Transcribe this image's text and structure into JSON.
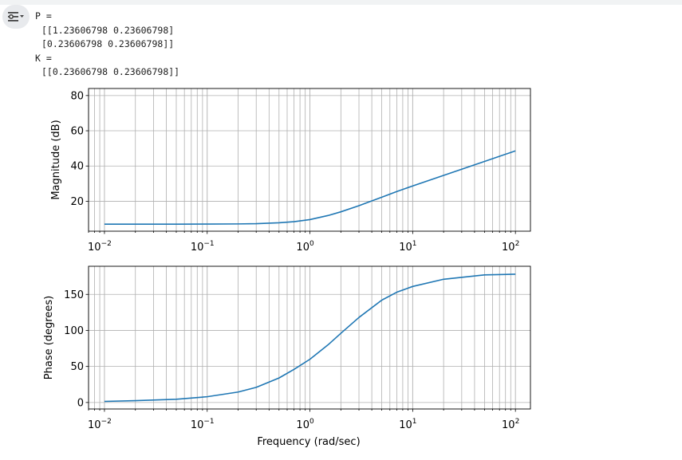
{
  "output": {
    "lines": [
      "P =",
      "[[1.23606798 0.23606798]",
      "[0.23606798 0.23606798]]",
      "K =",
      "[[0.23606798 0.23606798]]"
    ]
  },
  "colors": {
    "line": "#1f77b4",
    "grid": "#b0b0b0",
    "button_bg": "#e8eaed"
  },
  "icons": {
    "output_button": "output-settings-icon"
  },
  "chart_data": [
    {
      "type": "line",
      "title": "",
      "xlabel": "",
      "ylabel": "Magnitude (dB)",
      "xscale": "log",
      "xlim": [
        0.007,
        140
      ],
      "ylim": [
        3,
        84
      ],
      "grid": true,
      "xticks": [
        0.01,
        0.1,
        1,
        10,
        100
      ],
      "xtick_labels": [
        {
          "base": "10",
          "exp": "−2"
        },
        {
          "base": "10",
          "exp": "−1"
        },
        {
          "base": "10",
          "exp": "0"
        },
        {
          "base": "10",
          "exp": "1"
        },
        {
          "base": "10",
          "exp": "2"
        }
      ],
      "yticks": [
        20,
        40,
        60,
        80
      ],
      "ytick_labels": [
        "20",
        "40",
        "60",
        "80"
      ],
      "series": [
        {
          "x": [
            0.01,
            0.02,
            0.05,
            0.1,
            0.2,
            0.3,
            0.5,
            0.7,
            1,
            1.5,
            2,
            3,
            5,
            7,
            10,
            20,
            50,
            100
          ],
          "y": [
            6.99,
            6.99,
            7.0,
            7.03,
            7.13,
            7.29,
            7.78,
            8.39,
            9.6,
            11.9,
            14.0,
            17.5,
            22.3,
            25.5,
            28.7,
            34.7,
            42.6,
            48.6
          ]
        }
      ]
    },
    {
      "type": "line",
      "title": "",
      "xlabel": "Frequency (rad/sec)",
      "ylabel": "Phase (degrees)",
      "xscale": "log",
      "xlim": [
        0.007,
        140
      ],
      "ylim": [
        -9,
        189
      ],
      "grid": true,
      "xticks": [
        0.01,
        0.1,
        1,
        10,
        100
      ],
      "xtick_labels": [
        {
          "base": "10",
          "exp": "−2"
        },
        {
          "base": "10",
          "exp": "−1"
        },
        {
          "base": "10",
          "exp": "0"
        },
        {
          "base": "10",
          "exp": "1"
        },
        {
          "base": "10",
          "exp": "2"
        }
      ],
      "yticks": [
        0,
        50,
        100,
        150
      ],
      "ytick_labels": [
        "0",
        "50",
        "100",
        "150"
      ],
      "series": [
        {
          "x": [
            0.01,
            0.02,
            0.05,
            0.1,
            0.2,
            0.3,
            0.5,
            0.7,
            1,
            1.5,
            2,
            3,
            5,
            7,
            10,
            20,
            50,
            100
          ],
          "y": [
            1.5,
            2.5,
            4.5,
            8.0,
            14.5,
            21,
            34,
            46,
            60,
            80,
            96,
            118,
            142,
            153,
            161,
            171,
            177,
            178
          ]
        }
      ]
    }
  ]
}
